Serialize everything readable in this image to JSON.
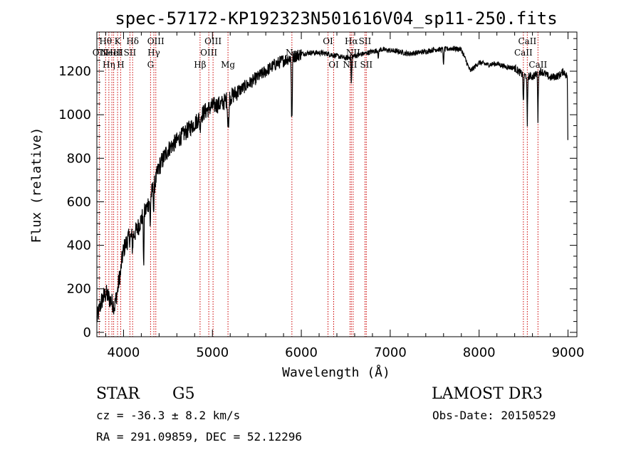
{
  "chart_data": {
    "type": "line",
    "title": "spec-57172-KP192323N501616V04_sp11-250.fits",
    "xlabel": "Wavelength (Å)",
    "ylabel": "Flux (relative)",
    "xlim": [
      3700,
      9100
    ],
    "ylim": [
      -20,
      1380
    ],
    "x_ticks": [
      4000,
      5000,
      6000,
      7000,
      8000,
      9000
    ],
    "y_ticks": [
      0,
      200,
      400,
      600,
      800,
      1000,
      1200
    ],
    "continuum": [
      [
        3700,
        60
      ],
      [
        3750,
        140
      ],
      [
        3800,
        180
      ],
      [
        3850,
        150
      ],
      [
        3900,
        120
      ],
      [
        3950,
        240
      ],
      [
        4000,
        380
      ],
      [
        4050,
        430
      ],
      [
        4100,
        440
      ],
      [
        4150,
        470
      ],
      [
        4200,
        520
      ],
      [
        4250,
        560
      ],
      [
        4300,
        620
      ],
      [
        4350,
        680
      ],
      [
        4400,
        760
      ],
      [
        4500,
        840
      ],
      [
        4600,
        880
      ],
      [
        4700,
        920
      ],
      [
        4800,
        960
      ],
      [
        4900,
        1010
      ],
      [
        5000,
        1040
      ],
      [
        5100,
        1050
      ],
      [
        5200,
        1080
      ],
      [
        5300,
        1110
      ],
      [
        5400,
        1140
      ],
      [
        5500,
        1170
      ],
      [
        5600,
        1200
      ],
      [
        5700,
        1230
      ],
      [
        5800,
        1250
      ],
      [
        5900,
        1265
      ],
      [
        6000,
        1280
      ],
      [
        6100,
        1285
      ],
      [
        6200,
        1285
      ],
      [
        6300,
        1280
      ],
      [
        6400,
        1270
      ],
      [
        6500,
        1260
      ],
      [
        6600,
        1270
      ],
      [
        6700,
        1280
      ],
      [
        6800,
        1290
      ],
      [
        6900,
        1300
      ],
      [
        7000,
        1295
      ],
      [
        7100,
        1290
      ],
      [
        7200,
        1280
      ],
      [
        7300,
        1285
      ],
      [
        7400,
        1290
      ],
      [
        7500,
        1300
      ],
      [
        7600,
        1300
      ],
      [
        7700,
        1305
      ],
      [
        7800,
        1300
      ],
      [
        7850,
        1250
      ],
      [
        7900,
        1200
      ],
      [
        8000,
        1240
      ],
      [
        8100,
        1230
      ],
      [
        8200,
        1235
      ],
      [
        8300,
        1220
      ],
      [
        8400,
        1215
      ],
      [
        8500,
        1180
      ],
      [
        8600,
        1175
      ],
      [
        8700,
        1200
      ],
      [
        8800,
        1170
      ],
      [
        8900,
        1180
      ],
      [
        8950,
        1200
      ],
      [
        9000,
        1170
      ]
    ],
    "absorption_features": [
      [
        3933,
        10
      ],
      [
        3968,
        20
      ],
      [
        4101,
        60
      ],
      [
        4226,
        280
      ],
      [
        4300,
        140
      ],
      [
        4340,
        120
      ],
      [
        4861,
        60
      ],
      [
        5172,
        110
      ],
      [
        5183,
        160
      ],
      [
        5890,
        200
      ],
      [
        5896,
        240
      ],
      [
        6563,
        140
      ],
      [
        6867,
        40
      ],
      [
        7600,
        80
      ],
      [
        8498,
        150
      ],
      [
        8542,
        240
      ],
      [
        8662,
        220
      ],
      [
        9000,
        400
      ]
    ],
    "emission_lines": [
      {
        "wavelength": 3727,
        "label": "OII",
        "row": 2
      },
      {
        "wavelength": 3798,
        "label": "Hθ",
        "row": 1
      },
      {
        "wavelength": 3835,
        "label": "Hη",
        "row": 3
      },
      {
        "wavelength": 3869,
        "label": "NeIII",
        "row": 2
      },
      {
        "wavelength": 3889,
        "label": "HeI",
        "row": 2
      },
      {
        "wavelength": 3933,
        "label": "K",
        "row": 1
      },
      {
        "wavelength": 3968,
        "label": "H",
        "row": 3
      },
      {
        "wavelength": 4072,
        "label": "SII",
        "row": 2
      },
      {
        "wavelength": 4102,
        "label": "Hδ",
        "row": 1
      },
      {
        "wavelength": 4304,
        "label": "G",
        "row": 3
      },
      {
        "wavelength": 4341,
        "label": "Hγ",
        "row": 2
      },
      {
        "wavelength": 4363,
        "label": "OIII",
        "row": 1
      },
      {
        "wavelength": 4861,
        "label": "Hβ",
        "row": 3
      },
      {
        "wavelength": 4959,
        "label": "OIII",
        "row": 2
      },
      {
        "wavelength": 5007,
        "label": "OIII",
        "row": 1
      },
      {
        "wavelength": 5175,
        "label": "Mg",
        "row": 3
      },
      {
        "wavelength": 5894,
        "label": "Na",
        "row": 2
      },
      {
        "wavelength": 6300,
        "label": "OI",
        "row": 1
      },
      {
        "wavelength": 6364,
        "label": "OI",
        "row": 3
      },
      {
        "wavelength": 6548,
        "label": "NII",
        "row": 3
      },
      {
        "wavelength": 6563,
        "label": "Hα",
        "row": 1
      },
      {
        "wavelength": 6583,
        "label": "NII",
        "row": 2
      },
      {
        "wavelength": 6716,
        "label": "SII",
        "row": 1
      },
      {
        "wavelength": 6731,
        "label": "SII",
        "row": 3
      },
      {
        "wavelength": 8498,
        "label": "CaII",
        "row": 2
      },
      {
        "wavelength": 8542,
        "label": "CaII",
        "row": 1
      },
      {
        "wavelength": 8662,
        "label": "CaII",
        "row": 3
      }
    ],
    "line_color": "#000000",
    "marker_color": "#cc0000"
  },
  "info": {
    "object_class": "STAR",
    "subclass": "G5",
    "survey": "LAMOST DR3",
    "redshift_text": "cz = -36.3 ± 8.2 km/s",
    "obs_date": "Obs-Date: 20150529",
    "coords": "RA = 291.09859, DEC =  52.12296"
  }
}
